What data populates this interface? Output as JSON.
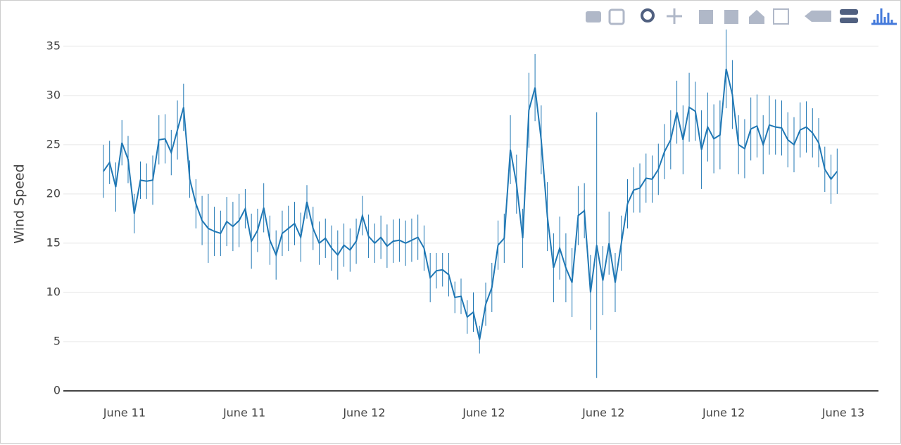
{
  "chart_data": {
    "type": "line",
    "y_label": "Wind Speed",
    "x": [
      0,
      1,
      2,
      3,
      4,
      5,
      6,
      7,
      8,
      9,
      10,
      11,
      12,
      13,
      14,
      15,
      16,
      17,
      18,
      19,
      20,
      21,
      22,
      23,
      24,
      25,
      26,
      27,
      28,
      29,
      30,
      31,
      32,
      33,
      34,
      35,
      36,
      37,
      38,
      39,
      40,
      41,
      42,
      43,
      44,
      45,
      46,
      47,
      48,
      49,
      50,
      51,
      52,
      53,
      54,
      55,
      56,
      57,
      58,
      59,
      60,
      61,
      62,
      63,
      64,
      65,
      66,
      67,
      68,
      69,
      70,
      71,
      72,
      73,
      74,
      75,
      76,
      77,
      78,
      79,
      80,
      81,
      82,
      83,
      84,
      85,
      86,
      87,
      88,
      89,
      90,
      91,
      92,
      93,
      94,
      95,
      96,
      97,
      98,
      99,
      100,
      101,
      102,
      103,
      104,
      105,
      106,
      107,
      108,
      109,
      110,
      111,
      112,
      113,
      114,
      115,
      116,
      117,
      118,
      119
    ],
    "series": [
      {
        "color": "#1f77b4",
        "values": [
          22.3,
          23.2,
          20.7,
          25.2,
          23.5,
          18,
          21.4,
          21.3,
          21.4,
          25.5,
          25.6,
          24.2,
          26.5,
          28.8,
          21.5,
          19,
          17.3,
          16.5,
          16.2,
          16,
          17.2,
          16.7,
          17.3,
          18.5,
          15.2,
          16.3,
          18.6,
          15.3,
          13.8,
          16,
          16.5,
          17,
          15.6,
          19.2,
          16.5,
          15,
          15.5,
          14.5,
          13.8,
          14.8,
          14.3,
          15.2,
          17.8,
          15.7,
          15,
          15.6,
          14.7,
          15.2,
          15.3,
          15,
          15.3,
          15.6,
          14.5,
          11.5,
          12.2,
          12.3,
          11.8,
          9.5,
          9.6,
          7.5,
          8,
          5.2,
          8.8,
          10.5,
          14.8,
          15.5,
          24.5,
          21,
          15.5,
          28.5,
          30.8,
          25.5,
          17.7,
          12.5,
          14.5,
          12.5,
          11,
          17.8,
          18.3,
          10,
          14.8,
          11.2,
          15,
          11,
          15,
          19,
          20.4,
          20.6,
          21.6,
          21.5,
          22.5,
          24.3,
          25.5,
          28.3,
          25.5,
          28.8,
          28.4,
          24.5,
          26.8,
          25.6,
          26,
          32.7,
          30.1,
          25,
          24.6,
          26.6,
          26.9,
          25,
          27,
          26.8,
          26.7,
          25.5,
          25,
          26.5,
          26.8,
          26.2,
          25.2,
          22.5,
          21.5,
          22.3
        ],
        "error": [
          2.7,
          2.2,
          2.5,
          2.3,
          2.4,
          2,
          1.9,
          1.8,
          2.5,
          2.5,
          2.5,
          2.3,
          3,
          2.4,
          1.9,
          2.5,
          2.5,
          3.5,
          2.5,
          2.3,
          2.5,
          2.5,
          2.7,
          2,
          2.8,
          2.2,
          2.5,
          2.5,
          2.5,
          2.3,
          2.3,
          2.2,
          2.5,
          1.7,
          2.2,
          2.2,
          2,
          2.3,
          2.5,
          2.2,
          2.2,
          2.3,
          2,
          2.2,
          2,
          2.2,
          2.2,
          2.2,
          2.2,
          2.3,
          2.2,
          2.3,
          2.3,
          2.5,
          1.8,
          1.7,
          2.2,
          1.6,
          1.8,
          1.7,
          2,
          1.4,
          2.2,
          2.5,
          2.5,
          2.5,
          3.5,
          3,
          3,
          3.8,
          3.4,
          3.5,
          3.5,
          3.5,
          3.2,
          3.5,
          3.5,
          3,
          2.8,
          3.8,
          13.5,
          3.5,
          3.2,
          3,
          2.8,
          2.5,
          2.3,
          2.5,
          2.5,
          2.4,
          2.6,
          2.8,
          3,
          3.2,
          3.5,
          3.5,
          3,
          4,
          3.5,
          3.5,
          3.5,
          4,
          3.5,
          3,
          3,
          3.2,
          3.2,
          3,
          3,
          2.8,
          2.8,
          2.8,
          2.8,
          2.8,
          2.6,
          2.5,
          2.5,
          2.3,
          2.5,
          2.3
        ]
      }
    ],
    "xlim": [
      -6.5,
      125.7
    ],
    "xticks": [
      {
        "value": 3.42,
        "label": "June 11"
      },
      {
        "value": 22.85,
        "label": "June 11"
      },
      {
        "value": 42.3,
        "label": "June 12"
      },
      {
        "value": 61.7,
        "label": "June 12"
      },
      {
        "value": 81.1,
        "label": "June 12"
      },
      {
        "value": 100.6,
        "label": "June 12"
      },
      {
        "value": 120.0,
        "label": "June 13"
      }
    ],
    "ylim": [
      0,
      36.7
    ],
    "yticks": [
      0,
      5,
      10,
      15,
      20,
      25,
      30,
      35
    ],
    "grid": true
  }
}
